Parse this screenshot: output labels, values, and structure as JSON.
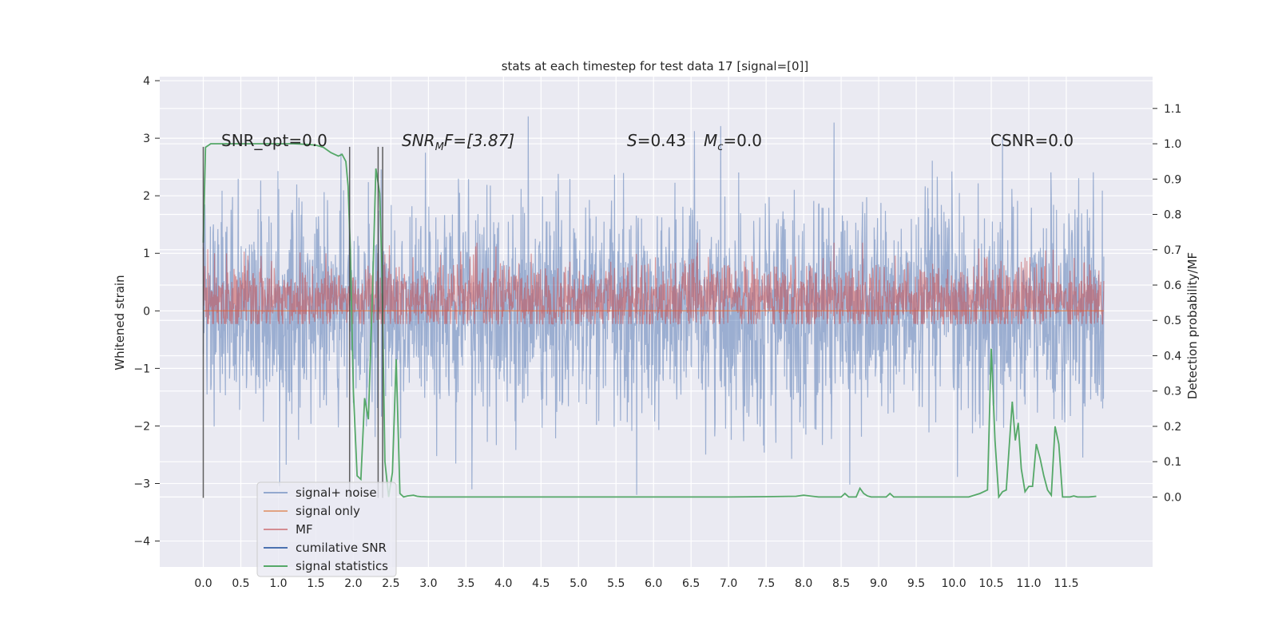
{
  "chart_data": {
    "type": "line",
    "title": "stats at each timestep for test data 17 [signal=[0]]",
    "xlabel": "",
    "ylabel": "Whitened strain",
    "ylabel_right": "Detection probability/MF",
    "x_ticks": [
      "0.0",
      "0.5",
      "1.0",
      "1.5",
      "2.0",
      "2.5",
      "3.0",
      "3.5",
      "4.0",
      "4.5",
      "5.0",
      "5.5",
      "6.0",
      "6.5",
      "7.0",
      "7.5",
      "8.0",
      "8.5",
      "9.0",
      "9.5",
      "10.0",
      "10.5",
      "11.0",
      "11.5"
    ],
    "y_ticks": [
      "4",
      "3",
      "2",
      "1",
      "0",
      "−1",
      "−2",
      "−3",
      "−4"
    ],
    "y_right_ticks": [
      "1.1",
      "1.0",
      "0.9",
      "0.8",
      "0.7",
      "0.6",
      "0.5",
      "0.4",
      "0.3",
      "0.2",
      "0.1",
      "0.0"
    ],
    "xlim": [
      -0.58,
      12.65
    ],
    "ylim_left": [
      -4.45,
      4.07
    ],
    "ylim_right": [
      -0.198,
      1.19
    ],
    "grid": true,
    "legend_position": "lower-left",
    "annotations": {
      "snr_opt": "SNR_opt=0.0",
      "snr_mf_main": "SNR",
      "snr_mf_sub": "M",
      "snr_mf_rest": "F=[3.87]",
      "s_label": "S",
      "s_value": "=0.43",
      "mc_label": "M",
      "mc_sub": "c",
      "mc_value": "=0.0",
      "csnr": "CSNR=0.0"
    },
    "vertical_markers": [
      0.0,
      1.95,
      2.33,
      2.39
    ],
    "series": [
      {
        "name": "signal+ noise",
        "color": "#4c72b0",
        "axis": "left",
        "x_range": [
          0.0,
          12.0
        ],
        "envelope": {
          "typical_abs": 1.55,
          "peak_high": 3.65,
          "peak_low": -4.1
        }
      },
      {
        "name": "signal only",
        "color": "#dd8452",
        "axis": "left",
        "values_constant": 0.0
      },
      {
        "name": "MF",
        "color": "#c44e52",
        "axis": "right",
        "x_range": [
          0.0,
          12.0
        ],
        "band": [
          0.5,
          0.68
        ]
      },
      {
        "name": "cumilative SNR",
        "color": "#4c72b0"
      },
      {
        "name": "signal statistics",
        "color": "#55a868",
        "axis": "right",
        "x": [
          0.0,
          0.03,
          0.1,
          0.2,
          0.4,
          0.6,
          0.8,
          1.0,
          1.2,
          1.4,
          1.5,
          1.6,
          1.7,
          1.75,
          1.8,
          1.85,
          1.9,
          1.93,
          1.96,
          2.0,
          2.05,
          2.1,
          2.15,
          2.2,
          2.25,
          2.3,
          2.35,
          2.38,
          2.42,
          2.47,
          2.52,
          2.57,
          2.62,
          2.67,
          2.72,
          2.8,
          2.85,
          2.9,
          3.0,
          3.1,
          3.3,
          3.6,
          4.0,
          5.0,
          6.0,
          7.0,
          7.5,
          7.9,
          8.0,
          8.2,
          8.5,
          8.55,
          8.6,
          8.7,
          8.75,
          8.8,
          8.85,
          8.9,
          9.0,
          9.1,
          9.15,
          9.2,
          9.3,
          9.5,
          10.0,
          10.2,
          10.35,
          10.45,
          10.5,
          10.55,
          10.6,
          10.65,
          10.7,
          10.78,
          10.82,
          10.86,
          10.9,
          10.95,
          11.0,
          11.05,
          11.1,
          11.15,
          11.2,
          11.25,
          11.3,
          11.35,
          11.4,
          11.45,
          11.5,
          11.55,
          11.6,
          11.65,
          11.7,
          11.8,
          11.9
        ],
        "y": [
          0.72,
          0.99,
          1.0,
          1.0,
          1.0,
          1.0,
          1.0,
          1.0,
          1.0,
          0.998,
          0.996,
          0.99,
          0.975,
          0.97,
          0.965,
          0.97,
          0.95,
          0.88,
          0.7,
          0.3,
          0.06,
          0.05,
          0.28,
          0.22,
          0.55,
          0.93,
          0.86,
          0.65,
          0.1,
          0.0,
          0.07,
          0.39,
          0.01,
          0.0,
          0.003,
          0.005,
          0.002,
          0.001,
          0.0,
          0.0,
          0.0,
          0.0,
          0.0,
          0.0,
          0.0,
          0.0,
          0.001,
          0.002,
          0.005,
          0.0,
          0.0,
          0.01,
          0.0,
          0.0,
          0.025,
          0.01,
          0.003,
          0.0,
          0.0,
          0.0,
          0.01,
          0.0,
          0.0,
          0.0,
          0.0,
          0.0,
          0.01,
          0.02,
          0.42,
          0.16,
          0.0,
          0.015,
          0.02,
          0.27,
          0.16,
          0.21,
          0.08,
          0.015,
          0.03,
          0.03,
          0.15,
          0.11,
          0.06,
          0.02,
          0.005,
          0.2,
          0.15,
          0.0,
          0.0,
          0.0,
          0.003,
          0.0,
          0.0,
          0.0,
          0.002
        ]
      }
    ]
  }
}
